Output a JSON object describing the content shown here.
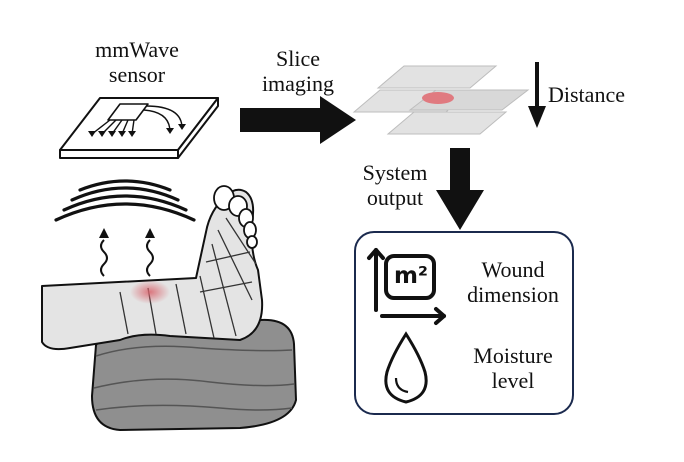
{
  "labels": {
    "sensor": [
      "mmWave",
      "sensor"
    ],
    "slice": [
      "Slice",
      "imaging"
    ],
    "distance": "Distance",
    "output": [
      "System",
      "output"
    ],
    "wound": [
      "Wound",
      "dimension"
    ],
    "moisture": [
      "Moisture",
      "level"
    ],
    "area_unit": "m²"
  },
  "icons": {
    "sensor": "mmwave-sensor-chip-icon",
    "waves": "radar-wave-icon",
    "leg": "bandaged-leg-illustration",
    "slices": "slice-planes-icon",
    "area": "area-square-meter-icon",
    "droplet": "water-droplet-icon"
  },
  "colors": {
    "wound_spot": "#e07a80",
    "panel_border": "#1b2a4e",
    "bandage": "#e3e3e3",
    "cushion": "#8a8a8a",
    "slice_plane": "#e2e2e2"
  }
}
